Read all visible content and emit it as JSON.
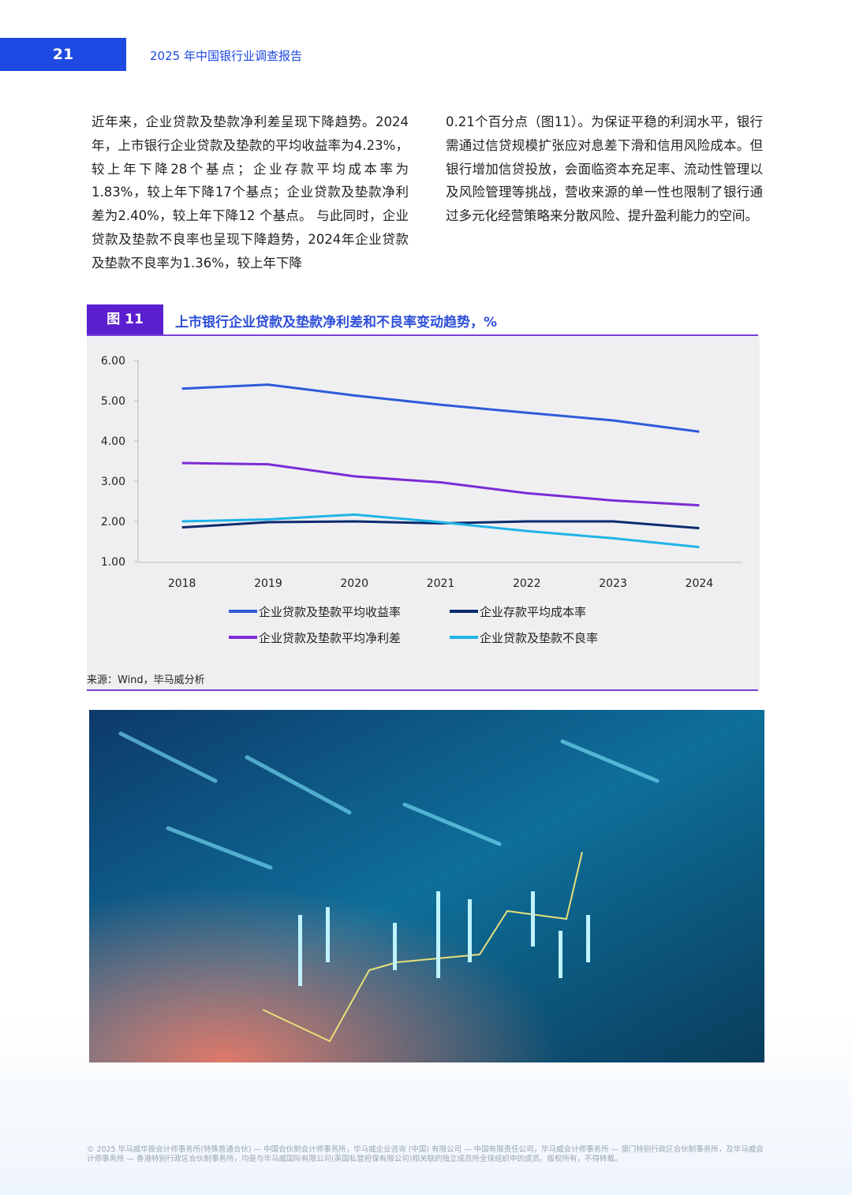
{
  "header": {
    "page_number": "21",
    "title": "2025 年中国银行业调查报告"
  },
  "columns": [
    "近年来，企业贷款及垫款净利差呈现下降趋势。2024年，上市银行企业贷款及垫款的平均收益率为4.23%，较上年下降28个基点；企业存款平均成本率为1.83%，较上年下降17个基点；企业贷款及垫款净利差为2.40%，较上年下降12 个基点。 与此同时，企业贷款及垫款不良率也呈现下降趋势，2024年企业贷款及垫款不良率为1.36%，较上年下降",
    "0.21个百分点（图11）。为保证平稳的利润水平，银行需通过信贷规模扩张应对息差下滑和信用风险成本。但银行增加信贷投放，会面临资本充足率、流动性管理以及风险管理等挑战，营收来源的单一性也限制了银行通过多元化经营策略来分散风险、提升盈利能力的空间。"
  ],
  "figure": {
    "label": "图 11",
    "source": "来源：Wind，毕马威分析"
  },
  "chart_data": {
    "type": "line",
    "title": "上市银行企业贷款及垫款净利差和不良率变动趋势，%",
    "categories": [
      "2018",
      "2019",
      "2020",
      "2021",
      "2022",
      "2023",
      "2024"
    ],
    "series": [
      {
        "name": "企业贷款及垫款平均收益率",
        "color": "#2e5bd8",
        "values": [
          5.3,
          5.4,
          5.13,
          4.9,
          4.7,
          4.51,
          4.23
        ]
      },
      {
        "name": "企业存款平均成本率",
        "color": "#0b2a6e",
        "values": [
          1.85,
          1.98,
          2.0,
          1.95,
          2.0,
          2.0,
          1.83
        ]
      },
      {
        "name": "企业贷款及垫款平均净利差",
        "color": "#7a2bd6",
        "values": [
          3.45,
          3.42,
          3.12,
          2.97,
          2.7,
          2.52,
          2.4
        ]
      },
      {
        "name": "企业贷款及垫款不良率",
        "color": "#1fb4e8",
        "values": [
          2.0,
          2.05,
          2.17,
          1.98,
          1.76,
          1.58,
          1.36
        ]
      }
    ],
    "ylim": [
      1,
      6
    ],
    "yticks": [
      {
        "value": 1,
        "label": "1.00"
      },
      {
        "value": 2,
        "label": "2.00"
      },
      {
        "value": 3,
        "label": "3.00"
      },
      {
        "value": 4,
        "label": "4.00"
      },
      {
        "value": 5,
        "label": "5.00"
      },
      {
        "value": 6,
        "label": "6.00"
      }
    ],
    "grid": false
  },
  "footer": "© 2025 毕马威华振会计师事务所(特殊普通合伙) — 中国合伙制会计师事务所，毕马威企业咨询 (中国) 有限公司 — 中国有限责任公司，毕马威会计师事务所 — 澳门特别行政区合伙制事务所，及毕马威会计师事务所 — 香港特别行政区合伙制事务所，均是与毕马威国际有限公司(英国私营担保有限公司)相关联的独立成员所全球组织中的成员。版权所有，不得转载。"
}
